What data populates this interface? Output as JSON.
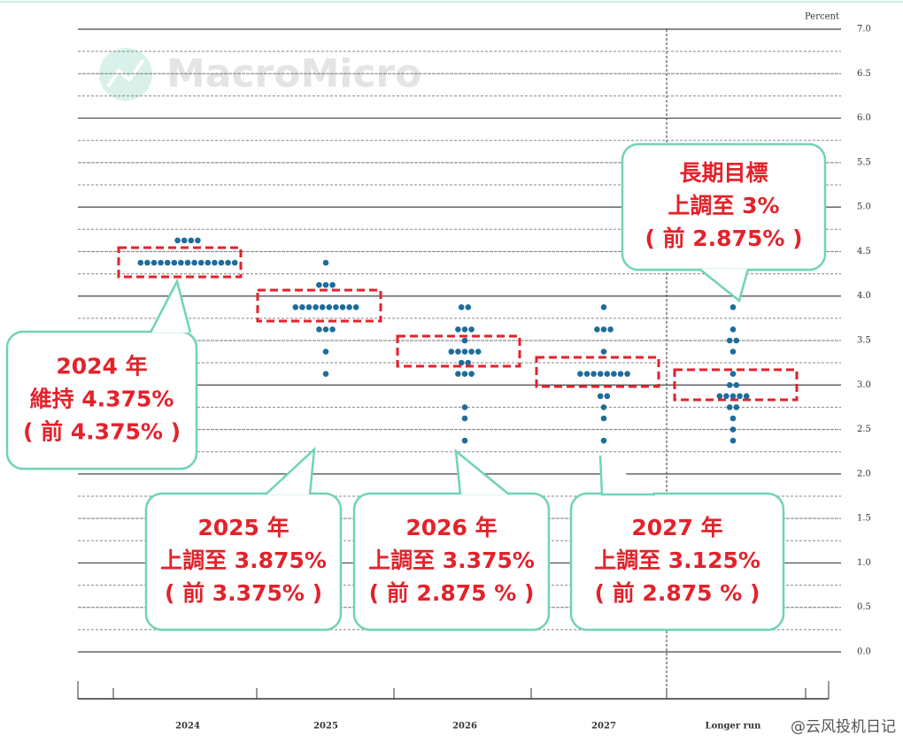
{
  "chart_data": {
    "type": "dotplot",
    "y_label": "Percent",
    "categories": [
      "2024",
      "2025",
      "2026",
      "2027",
      "Longer run"
    ],
    "ylim": [
      0,
      7
    ],
    "yticks": [
      {
        "value": 0,
        "label": "0.0"
      },
      0.5,
      {
        "value": 1,
        "label": "1.0"
      },
      1.5,
      {
        "value": 2,
        "label": "2.0"
      },
      2.5,
      {
        "value": 3,
        "label": "3.0"
      },
      3.5,
      {
        "value": 4,
        "label": "4.0"
      },
      4.5,
      {
        "value": 5,
        "label": "5.0"
      },
      5.5,
      {
        "value": 6,
        "label": "6.0"
      },
      6.5,
      {
        "value": 7,
        "label": "7.0"
      }
    ],
    "grid": true,
    "color": "#1d6c9c",
    "dots": [
      {
        "rows": [
          {
            "value": 4.625,
            "count": 4
          },
          {
            "value": 4.375,
            "count": 15
          }
        ]
      },
      {
        "rows": [
          {
            "value": 4.375,
            "count": 1
          },
          {
            "value": 4.125,
            "count": 3
          },
          {
            "value": 3.875,
            "count": 10
          },
          {
            "value": 3.625,
            "count": 3
          },
          {
            "value": 3.375,
            "count": 1
          },
          {
            "value": 3.125,
            "count": 1
          }
        ]
      },
      {
        "rows": [
          {
            "value": 3.875,
            "count": 2
          },
          {
            "value": 3.625,
            "count": 3
          },
          {
            "value": 3.5,
            "count": 1
          },
          {
            "value": 3.375,
            "count": 5
          },
          {
            "value": 3.25,
            "count": 2
          },
          {
            "value": 3.125,
            "count": 3
          },
          {
            "value": 2.75,
            "count": 1
          },
          {
            "value": 2.625,
            "count": 1
          },
          {
            "value": 2.375,
            "count": 1
          }
        ]
      },
      {
        "rows": [
          {
            "value": 3.875,
            "count": 1
          },
          {
            "value": 3.625,
            "count": 3
          },
          {
            "value": 3.375,
            "count": 1
          },
          {
            "value": 3.125,
            "count": 8
          },
          {
            "value": 2.875,
            "count": 2
          },
          {
            "value": 2.75,
            "count": 1
          },
          {
            "value": 2.625,
            "count": 1
          },
          {
            "value": 2.375,
            "count": 1
          }
        ]
      },
      {
        "rows": [
          {
            "value": 3.875,
            "count": 1
          },
          {
            "value": 3.625,
            "count": 1
          },
          {
            "value": 3.5,
            "count": 2
          },
          {
            "value": 3.375,
            "count": 1
          },
          {
            "value": 3.125,
            "count": 1
          },
          {
            "value": 3.0,
            "count": 2
          },
          {
            "value": 2.875,
            "count": 5
          },
          {
            "value": 2.75,
            "count": 2
          },
          {
            "value": 2.625,
            "count": 1
          },
          {
            "value": 2.5,
            "count": 1
          },
          {
            "value": 2.375,
            "count": 1
          }
        ]
      }
    ],
    "annotations": [
      {
        "lines": [
          "2024 年",
          "維持 4.375%",
          "( 前 4.375% )"
        ]
      },
      {
        "lines": [
          "2025 年",
          "上調至 3.875%",
          "( 前 3.375% )"
        ]
      },
      {
        "lines": [
          "2026 年",
          "上調至 3.375%",
          "( 前 2.875 % )"
        ]
      },
      {
        "lines": [
          "2027 年",
          "上調至 3.125%",
          "( 前 2.875 % )"
        ]
      },
      {
        "lines": [
          "長期目標",
          "上調至 3%",
          "( 前 2.875% )"
        ]
      }
    ],
    "watermarks": [
      "MacroMicro",
      "@云风投机日记"
    ]
  }
}
